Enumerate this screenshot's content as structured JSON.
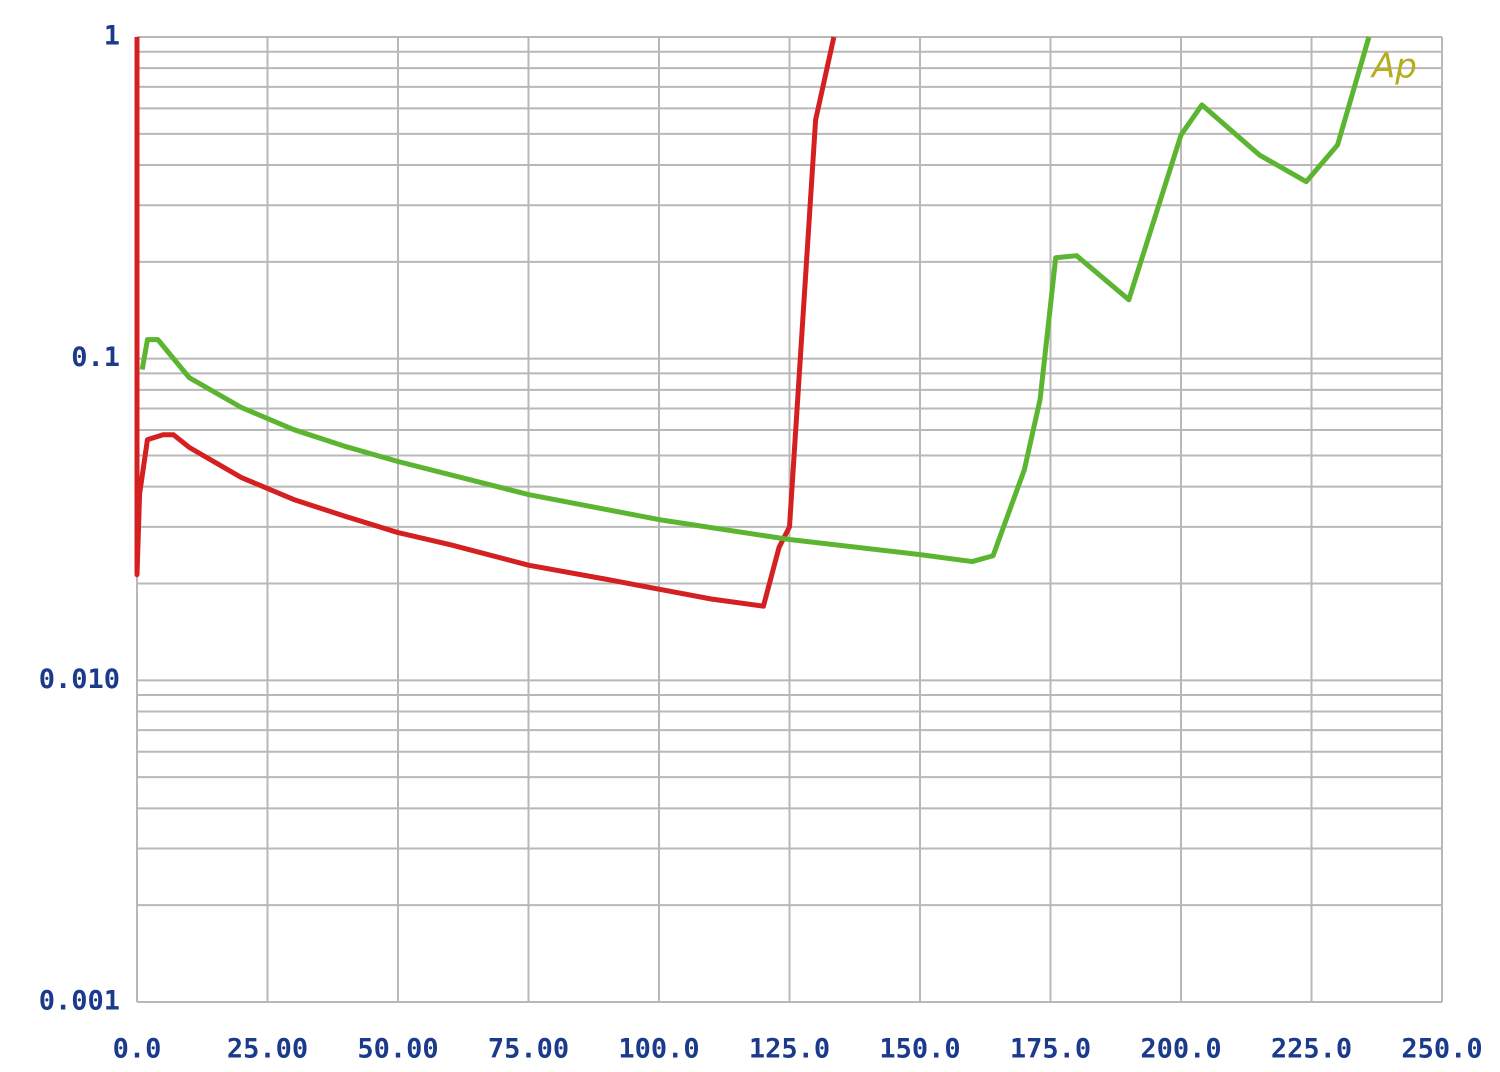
{
  "chart_data": {
    "type": "line",
    "yscale": "log",
    "grid": true,
    "annotation": "Ap",
    "annotation_color": "#b5ad1e",
    "xlim": [
      0,
      250
    ],
    "xticks": [
      {
        "value": 0,
        "label": "0.0"
      },
      {
        "value": 25,
        "label": "25.00"
      },
      {
        "value": 50,
        "label": "50.00"
      },
      {
        "value": 75,
        "label": "75.00"
      },
      {
        "value": 100,
        "label": "100.0"
      },
      {
        "value": 125,
        "label": "125.0"
      },
      {
        "value": 150,
        "label": "150.0"
      },
      {
        "value": 175,
        "label": "175.0"
      },
      {
        "value": 200,
        "label": "200.0"
      },
      {
        "value": 225,
        "label": "225.0"
      },
      {
        "value": 250,
        "label": "250.0"
      }
    ],
    "ylim": [
      0.001,
      1
    ],
    "yticks": [
      1,
      0.1,
      {
        "value": 0.01,
        "label": "0.010"
      },
      0.001
    ],
    "y_minor_gridlines": [
      0.002,
      0.003,
      0.004,
      0.005,
      0.006,
      0.007,
      0.008,
      0.009,
      0.02,
      0.03,
      0.04,
      0.05,
      0.06,
      0.07,
      0.08,
      0.09,
      0.2,
      0.3,
      0.4,
      0.5,
      0.6,
      0.7,
      0.8,
      0.9
    ],
    "series": [
      {
        "color": "#d42020",
        "x": [
          0,
          0,
          0.5,
          2,
          5,
          7,
          10,
          20,
          30,
          40,
          50,
          60,
          75,
          90,
          100,
          110,
          120,
          123,
          125,
          130,
          133.5
        ],
        "values": [
          1,
          0.0213,
          0.038,
          0.056,
          0.058,
          0.058,
          0.053,
          0.0427,
          0.0365,
          0.0323,
          0.0288,
          0.0264,
          0.0228,
          0.0206,
          0.0192,
          0.0179,
          0.017,
          0.0259,
          0.03,
          0.552,
          1
        ]
      },
      {
        "color": "#5cb531",
        "x": [
          1,
          2,
          4,
          10,
          20,
          30,
          40,
          50,
          75,
          100,
          125,
          150,
          160,
          164,
          170,
          173,
          176,
          180,
          190,
          200,
          204,
          215,
          224,
          230,
          236
        ],
        "values": [
          0.0925,
          0.1146,
          0.1146,
          0.0873,
          0.0705,
          0.0602,
          0.0533,
          0.0479,
          0.0378,
          0.0316,
          0.0274,
          0.0246,
          0.0234,
          0.0244,
          0.0452,
          0.0746,
          0.206,
          0.209,
          0.1525,
          0.496,
          0.615,
          0.43,
          0.355,
          0.462,
          1
        ]
      }
    ]
  }
}
